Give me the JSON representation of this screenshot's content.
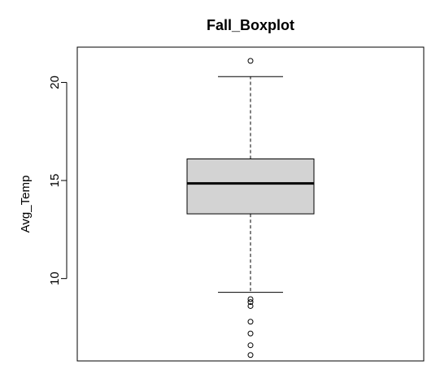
{
  "chart_data": {
    "type": "boxplot",
    "title": "Fall_Boxplot",
    "xlabel": "",
    "ylabel": "Avg_Temp",
    "ylim": [
      5.8,
      21.8
    ],
    "yticks": [
      10,
      15,
      20
    ],
    "ytick_labels": [
      "10",
      "15",
      "20"
    ],
    "box": {
      "lower_whisker": 9.3,
      "q1": 13.3,
      "median": 14.85,
      "q3": 16.1,
      "upper_whisker": 20.3
    },
    "outliers": [
      21.1,
      8.95,
      8.8,
      8.6,
      7.8,
      7.2,
      6.6,
      6.1
    ],
    "box_fill": "#d3d3d3",
    "line_color": "#000000"
  }
}
